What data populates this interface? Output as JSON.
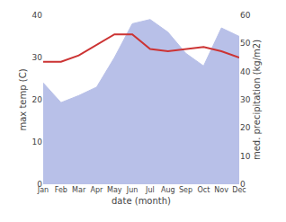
{
  "chart_data": {
    "type": "line",
    "xlabel": "date (month)",
    "ylabel": "max temp (C)",
    "y2label": "med. precipitation (kg/m2)",
    "categories": [
      "Jan",
      "Feb",
      "Mar",
      "Apr",
      "May",
      "Jun",
      "Jul",
      "Aug",
      "Sep",
      "Oct",
      "Nov",
      "Dec"
    ],
    "series": [
      {
        "type": "area",
        "axis": "y2",
        "color": "#b8c0e8",
        "values": [
          36.0,
          29.0,
          31.5,
          34.5,
          45.0,
          57.0,
          58.5,
          54.0,
          46.5,
          42.0,
          55.5,
          52.5
        ]
      },
      {
        "type": "line",
        "color": "#cc3333",
        "values": [
          29.0,
          29.0,
          30.5,
          33.0,
          35.5,
          35.5,
          32.0,
          31.5,
          32.0,
          32.5,
          31.5,
          30.0
        ]
      }
    ],
    "ylim": [
      0,
      40
    ],
    "yticks": [
      0,
      10,
      20,
      30,
      40
    ],
    "y2lim": [
      0,
      60
    ],
    "y2ticks": [
      0,
      10,
      20,
      30,
      40,
      50,
      60
    ],
    "grid": false
  }
}
